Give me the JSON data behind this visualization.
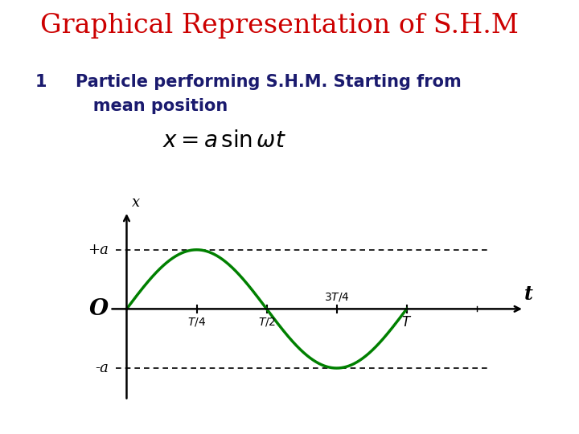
{
  "title": "Graphical Representation of S.H.M",
  "title_color": "#cc0000",
  "subtitle_number": "1",
  "subtitle_line1": "Particle performing S.H.M. Starting from",
  "subtitle_line2": "   mean position",
  "background_color": "#ffffff",
  "curve_color": "#008000",
  "text_color": "#1a1a6e",
  "axis_color": "#000000",
  "x_label": "x",
  "t_label": "t",
  "o_label": "O",
  "plus_a_label": "+a",
  "minus_a_label": "-a",
  "plot_xlim": [
    -0.08,
    1.45
  ],
  "plot_ylim": [
    -1.6,
    1.7
  ]
}
